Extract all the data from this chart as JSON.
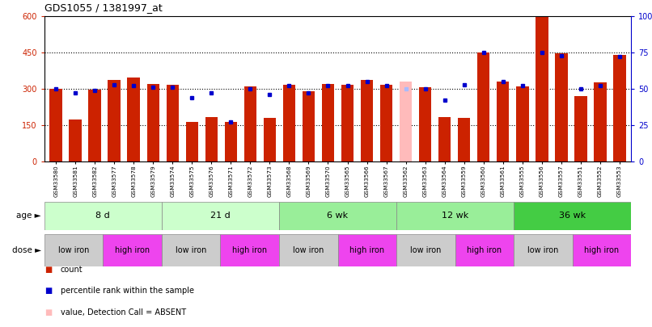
{
  "title": "GDS1055 / 1381997_at",
  "samples": [
    "GSM33580",
    "GSM33581",
    "GSM33582",
    "GSM33577",
    "GSM33578",
    "GSM33579",
    "GSM33574",
    "GSM33575",
    "GSM33576",
    "GSM33571",
    "GSM33572",
    "GSM33573",
    "GSM33568",
    "GSM33569",
    "GSM33570",
    "GSM33565",
    "GSM33566",
    "GSM33567",
    "GSM33562",
    "GSM33563",
    "GSM33564",
    "GSM33559",
    "GSM33560",
    "GSM33561",
    "GSM33555",
    "GSM33556",
    "GSM33557",
    "GSM33551",
    "GSM33552",
    "GSM33553"
  ],
  "counts": [
    300,
    175,
    295,
    335,
    345,
    320,
    315,
    165,
    185,
    165,
    310,
    180,
    315,
    290,
    320,
    315,
    335,
    315,
    330,
    305,
    185,
    180,
    450,
    330,
    310,
    595,
    445,
    270,
    325,
    440
  ],
  "ranks": [
    50,
    47,
    49,
    53,
    52,
    51,
    51,
    44,
    47,
    27,
    50,
    46,
    52,
    47,
    52,
    52,
    55,
    52,
    50,
    50,
    42,
    53,
    75,
    55,
    52,
    75,
    73,
    50,
    52,
    72
  ],
  "absent": [
    false,
    false,
    false,
    false,
    false,
    false,
    false,
    false,
    false,
    false,
    false,
    false,
    false,
    false,
    false,
    false,
    false,
    false,
    true,
    false,
    false,
    false,
    false,
    false,
    false,
    false,
    false,
    false,
    false,
    false
  ],
  "ages": [
    {
      "label": "8 d",
      "start": 0,
      "end": 6,
      "color": "#ccffcc"
    },
    {
      "label": "21 d",
      "start": 6,
      "end": 12,
      "color": "#ccffcc"
    },
    {
      "label": "6 wk",
      "start": 12,
      "end": 18,
      "color": "#99ee99"
    },
    {
      "label": "12 wk",
      "start": 18,
      "end": 24,
      "color": "#99ee99"
    },
    {
      "label": "36 wk",
      "start": 24,
      "end": 30,
      "color": "#44cc44"
    }
  ],
  "doses": [
    {
      "label": "low iron",
      "start": 0,
      "end": 3,
      "color": "#cccccc"
    },
    {
      "label": "high iron",
      "start": 3,
      "end": 6,
      "color": "#ee44ee"
    },
    {
      "label": "low iron",
      "start": 6,
      "end": 9,
      "color": "#cccccc"
    },
    {
      "label": "high iron",
      "start": 9,
      "end": 12,
      "color": "#ee44ee"
    },
    {
      "label": "low iron",
      "start": 12,
      "end": 15,
      "color": "#cccccc"
    },
    {
      "label": "high iron",
      "start": 15,
      "end": 18,
      "color": "#ee44ee"
    },
    {
      "label": "low iron",
      "start": 18,
      "end": 21,
      "color": "#cccccc"
    },
    {
      "label": "high iron",
      "start": 21,
      "end": 24,
      "color": "#ee44ee"
    },
    {
      "label": "low iron",
      "start": 24,
      "end": 27,
      "color": "#cccccc"
    },
    {
      "label": "high iron",
      "start": 27,
      "end": 30,
      "color": "#ee44ee"
    }
  ],
  "bar_color": "#cc2200",
  "absent_bar_color": "#ffbbbb",
  "rank_color": "#0000cc",
  "absent_rank_color": "#aabbff",
  "ylim_left": [
    0,
    600
  ],
  "ylim_right": [
    0,
    100
  ],
  "yticks_left": [
    0,
    150,
    300,
    450,
    600
  ],
  "yticks_right": [
    0,
    25,
    50,
    75,
    100
  ],
  "ytick_labels_right": [
    "0",
    "25",
    "50",
    "75",
    "100%"
  ],
  "hlines": [
    150,
    300,
    450
  ],
  "legend": [
    {
      "color": "#cc2200",
      "label": "count"
    },
    {
      "color": "#0000cc",
      "label": "percentile rank within the sample"
    },
    {
      "color": "#ffbbbb",
      "label": "value, Detection Call = ABSENT"
    },
    {
      "color": "#aabbff",
      "label": "rank, Detection Call = ABSENT"
    }
  ]
}
